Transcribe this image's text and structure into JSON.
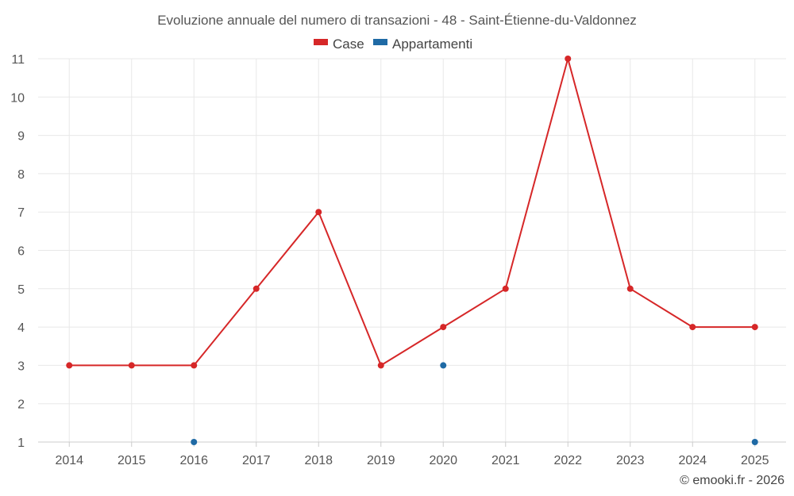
{
  "chart_data": {
    "type": "line",
    "title": "Evoluzione annuale del numero di transazioni - 48 - Saint-Étienne-du-Valdonnez",
    "categories": [
      "2014",
      "2015",
      "2016",
      "2017",
      "2018",
      "2019",
      "2020",
      "2021",
      "2022",
      "2023",
      "2024",
      "2025"
    ],
    "series": [
      {
        "name": "Case",
        "color": "#d62728",
        "values": [
          3,
          3,
          3,
          5,
          7,
          3,
          4,
          5,
          11,
          5,
          4,
          4
        ]
      },
      {
        "name": "Appartamenti",
        "color": "#1f6aa5",
        "values": [
          null,
          null,
          1,
          null,
          null,
          null,
          3,
          null,
          null,
          null,
          null,
          1
        ]
      }
    ],
    "ylim": [
      1,
      11
    ],
    "yticks": [
      1,
      2,
      3,
      4,
      5,
      6,
      7,
      8,
      9,
      10,
      11
    ],
    "xlabel": "",
    "ylabel": "",
    "grid": true,
    "legend_position": "top-center",
    "credit": "© emooki.fr - 2026"
  }
}
